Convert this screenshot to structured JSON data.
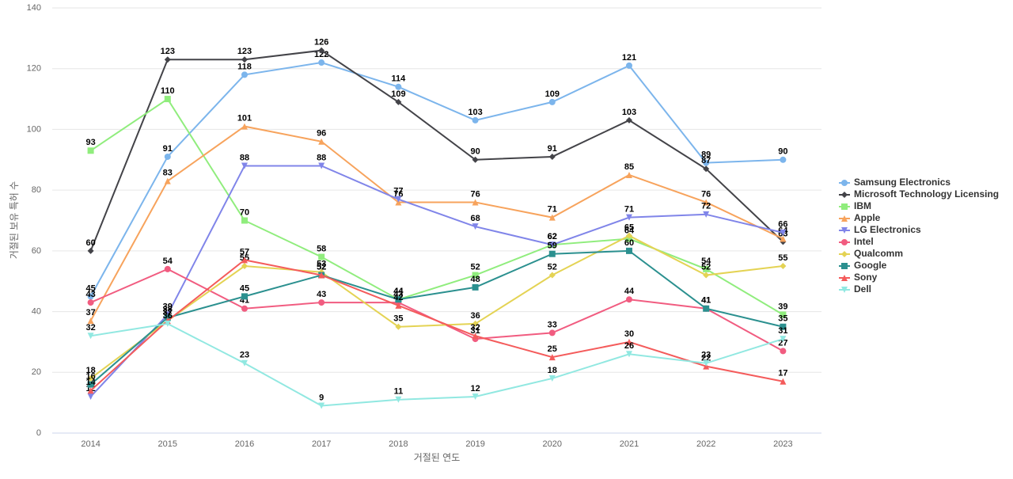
{
  "chart_data": {
    "type": "line",
    "x_label": "거절된 연도",
    "y_label": "거절된 보유 특허 수",
    "categories": [
      "2014",
      "2015",
      "2016",
      "2017",
      "2018",
      "2019",
      "2020",
      "2021",
      "2022",
      "2023"
    ],
    "ylim": [
      0,
      140
    ],
    "yticks": [
      0,
      20,
      40,
      60,
      80,
      100,
      120,
      140
    ],
    "grid": true,
    "legend": "right",
    "series": [
      {
        "name": "Samsung Electronics",
        "color": "#7cb5ec",
        "marker": "circle",
        "values": [
          45,
          91,
          118,
          122,
          114,
          103,
          109,
          121,
          89,
          90
        ]
      },
      {
        "name": "Microsoft Technology Licensing",
        "color": "#434348",
        "marker": "diamond",
        "values": [
          60,
          123,
          123,
          126,
          109,
          90,
          91,
          103,
          87,
          63
        ]
      },
      {
        "name": "IBM",
        "color": "#90ed7d",
        "marker": "square",
        "values": [
          93,
          110,
          70,
          58,
          44,
          52,
          62,
          64,
          54,
          39
        ]
      },
      {
        "name": "Apple",
        "color": "#f7a35c",
        "marker": "triangle",
        "values": [
          37,
          83,
          101,
          96,
          76,
          76,
          71,
          85,
          76,
          64
        ]
      },
      {
        "name": "LG Electronics",
        "color": "#8085e9",
        "marker": "triangle-down",
        "values": [
          12,
          39,
          88,
          88,
          77,
          68,
          62,
          71,
          72,
          66
        ]
      },
      {
        "name": "Intel",
        "color": "#f15c80",
        "marker": "circle",
        "values": [
          43,
          54,
          41,
          43,
          43,
          31,
          33,
          44,
          41,
          27
        ]
      },
      {
        "name": "Qualcomm",
        "color": "#e4d354",
        "marker": "diamond",
        "values": [
          18,
          37,
          55,
          53,
          35,
          36,
          52,
          65,
          52,
          55
        ]
      },
      {
        "name": "Google",
        "color": "#2b908f",
        "marker": "square",
        "values": [
          16,
          38,
          45,
          52,
          44,
          48,
          59,
          60,
          41,
          35
        ]
      },
      {
        "name": "Sony",
        "color": "#f45b5b",
        "marker": "triangle",
        "values": [
          14,
          37,
          57,
          52,
          42,
          32,
          25,
          30,
          22,
          17
        ]
      },
      {
        "name": "Dell",
        "color": "#91e8e1",
        "marker": "triangle-down",
        "values": [
          32,
          36,
          23,
          9,
          11,
          12,
          18,
          26,
          23,
          31
        ]
      }
    ]
  }
}
